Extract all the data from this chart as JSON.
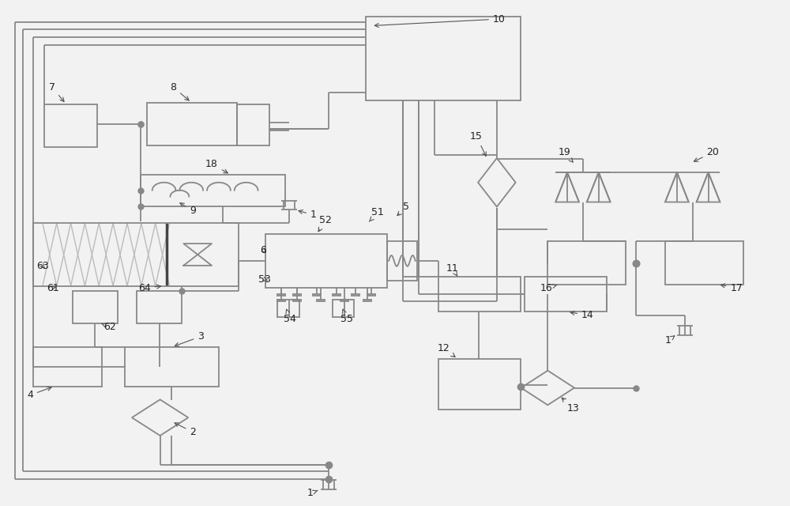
{
  "bg": "#f2f2f2",
  "lc": "#888888",
  "lc2": "#aaaaaa",
  "lw": 1.3,
  "fs": 9
}
